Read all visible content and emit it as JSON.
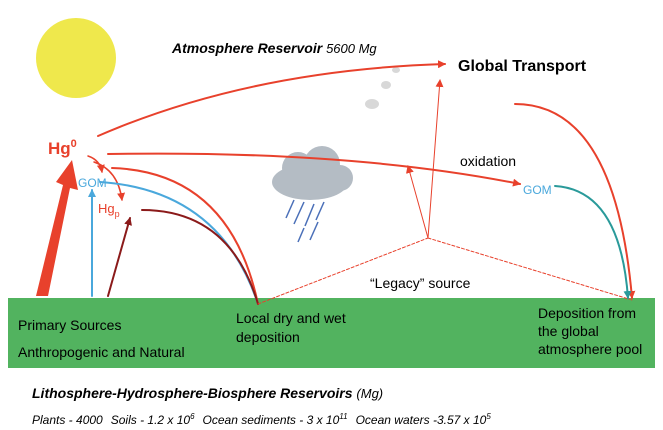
{
  "atmosphere": {
    "title": "Atmosphere Reservoir",
    "amount": "5600 Mg"
  },
  "global_transport": "Global Transport",
  "species": {
    "hg0": {
      "base": "Hg",
      "sup": "0"
    },
    "gom_left": "GOM",
    "hgp": {
      "base": "Hg",
      "sub": "p"
    },
    "gom_right": "GOM"
  },
  "oxidation": "oxidation",
  "legacy": "“Legacy” source",
  "primary": {
    "title": "Primary Sources",
    "subtitle": "Anthropogenic and Natural"
  },
  "local_deposition": [
    "Local dry and wet",
    "deposition"
  ],
  "global_deposition": [
    "Deposition from",
    "the global",
    "atmosphere pool"
  ],
  "reservoirs": {
    "title": "Lithosphere-Hydrosphere-Biosphere Reservoirs",
    "unit": "(Mg)"
  },
  "inventory": [
    {
      "name": "Plants - 4000"
    },
    {
      "name": "Soils - 1.2 x 10",
      "exp": "6"
    },
    {
      "name": "Ocean sediments - 3 x 10",
      "exp": "11"
    },
    {
      "name": "Ocean waters -3.57 x 10",
      "exp": "5"
    }
  ]
}
